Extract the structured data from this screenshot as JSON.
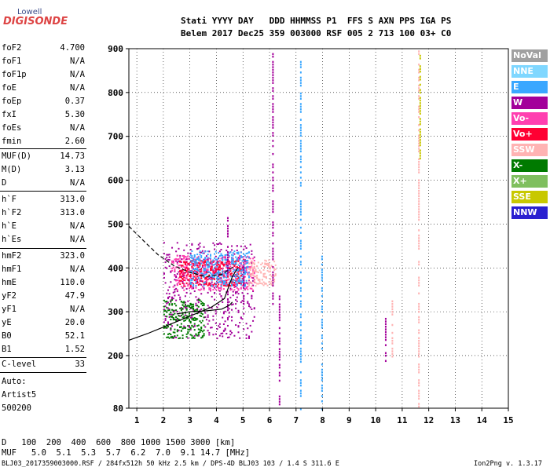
{
  "logo": {
    "top": "Lowell",
    "main": "DIGISONDE"
  },
  "header": {
    "line1": "Stati YYYY DAY   DDD HHMMSS P1  FFS S AXN PPS IGA PS",
    "line2": "Belem 2017 Dec25 359 003000 RSF 005 2 713 100 03+ C0"
  },
  "params": [
    {
      "name": "foF2",
      "value": "4.700"
    },
    {
      "name": "foF1",
      "value": "N/A"
    },
    {
      "name": "foF1p",
      "value": "N/A"
    },
    {
      "name": "foE",
      "value": "N/A"
    },
    {
      "name": "foEp",
      "value": "0.37"
    },
    {
      "name": "fxI",
      "value": "5.30"
    },
    {
      "name": "foEs",
      "value": "N/A"
    },
    {
      "name": "fmin",
      "value": "2.60"
    },
    {
      "name": "MUF(D)",
      "value": "14.73"
    },
    {
      "name": "M(D)",
      "value": "3.13"
    },
    {
      "name": "D",
      "value": "N/A"
    },
    {
      "name": "h`F",
      "value": "313.0"
    },
    {
      "name": "h`F2",
      "value": "313.0"
    },
    {
      "name": "h`E",
      "value": "N/A"
    },
    {
      "name": "h`Es",
      "value": "N/A"
    },
    {
      "name": "hmF2",
      "value": "323.0"
    },
    {
      "name": "hmF1",
      "value": "N/A"
    },
    {
      "name": "hmE",
      "value": "110.0"
    },
    {
      "name": "yF2",
      "value": "47.9"
    },
    {
      "name": "yF1",
      "value": "N/A"
    },
    {
      "name": "yE",
      "value": "20.0"
    },
    {
      "name": "B0",
      "value": "52.1"
    },
    {
      "name": "B1",
      "value": "1.52"
    },
    {
      "name": "C-level",
      "value": "33"
    }
  ],
  "auto": {
    "label": "Auto:",
    "artist": "Artist5",
    "version": "500200"
  },
  "dist_table": {
    "d_label": "D",
    "distances": [
      "100",
      "200",
      "400",
      "600",
      "800",
      "1000",
      "1500",
      "3000"
    ],
    "d_unit": "[km]",
    "muf_label": "MUF",
    "mufs": [
      "5.0",
      "5.1",
      "5.3",
      "5.7",
      "6.2",
      "7.0",
      "9.1",
      "14.7"
    ],
    "muf_unit": "[MHz]"
  },
  "footer": "BLJ03_2017359003000.RSF / 284fx512h 50 kHz 2.5 km / DPS-4D BLJ03 103 / 1.4 S 311.6 E",
  "version": "Ion2Png v. 1.3.17",
  "legend": [
    {
      "label": "NoVal",
      "color": "#a0a0a0"
    },
    {
      "label": "NNE",
      "color": "#7fd7ff"
    },
    {
      "label": "E",
      "color": "#3aa7ff"
    },
    {
      "label": "W",
      "color": "#a3009a"
    },
    {
      "label": "Vo-",
      "color": "#ff3fb0"
    },
    {
      "label": "Vo+",
      "color": "#ff0033"
    },
    {
      "label": "SSW",
      "color": "#ffb3b3"
    },
    {
      "label": "X-",
      "color": "#007a00"
    },
    {
      "label": "X+",
      "color": "#7fbf5f"
    },
    {
      "label": "SSE",
      "color": "#c8c800"
    },
    {
      "label": "NNW",
      "color": "#2a20d0"
    }
  ],
  "chart_data": {
    "type": "scatter",
    "xlim": [
      0.7,
      15
    ],
    "ylim": [
      80,
      900
    ],
    "x_ticks": [
      1,
      2,
      3,
      4,
      5,
      6,
      7,
      8,
      9,
      10,
      11,
      12,
      13,
      14,
      15
    ],
    "y_ticks": [
      80,
      200,
      300,
      400,
      500,
      600,
      700,
      800,
      900
    ],
    "grid": true,
    "traces": [
      {
        "kind": "dashed",
        "points": [
          [
            0.7,
            495
          ],
          [
            1.2,
            465
          ],
          [
            1.8,
            430
          ],
          [
            2.4,
            405
          ],
          [
            3.0,
            390
          ],
          [
            3.6,
            380
          ],
          [
            4.2,
            385
          ],
          [
            4.7,
            405
          ]
        ]
      },
      {
        "kind": "solid",
        "points": [
          [
            0.7,
            235
          ],
          [
            1.4,
            250
          ],
          [
            2.0,
            265
          ],
          [
            2.6,
            280
          ],
          [
            3.2,
            295
          ],
          [
            3.8,
            310
          ],
          [
            4.3,
            330
          ],
          [
            4.6,
            380
          ],
          [
            4.8,
            400
          ]
        ]
      },
      {
        "kind": "solid",
        "points": [
          [
            2.5,
            295
          ],
          [
            3.0,
            300
          ],
          [
            3.6,
            302
          ],
          [
            4.2,
            306
          ],
          [
            4.5,
            315
          ],
          [
            4.6,
            322
          ]
        ]
      }
    ],
    "echoes": [
      {
        "f_start": 2.0,
        "f_end": 5.4,
        "h_min": 240,
        "h_max": 460,
        "color": "#a3009a"
      },
      {
        "f_start": 2.3,
        "f_end": 5.4,
        "h_min": 350,
        "h_max": 430,
        "color": "#ff3fb0"
      },
      {
        "f_start": 2.6,
        "f_end": 5.0,
        "h_min": 360,
        "h_max": 420,
        "color": "#ff0033"
      },
      {
        "f_start": 3.0,
        "f_end": 5.2,
        "h_min": 360,
        "h_max": 440,
        "color": "#3aa7ff"
      },
      {
        "f_start": 2.0,
        "f_end": 3.5,
        "h_min": 240,
        "h_max": 330,
        "color": "#007a00"
      },
      {
        "f_start": 5.2,
        "f_end": 6.2,
        "h_min": 360,
        "h_max": 420,
        "color": "#ffb3b3"
      }
    ],
    "columns": [
      {
        "f": 4.4,
        "h_min": 300,
        "h_max": 520,
        "color": "#a3009a"
      },
      {
        "f": 5.0,
        "h_min": 320,
        "h_max": 420,
        "color": "#a3009a"
      },
      {
        "f": 6.1,
        "h_min": 320,
        "h_max": 890,
        "color": "#a3009a"
      },
      {
        "f": 6.35,
        "h_min": 85,
        "h_max": 340,
        "color": "#a3009a"
      },
      {
        "f": 7.15,
        "h_min": 80,
        "h_max": 880,
        "color": "#3aa7ff"
      },
      {
        "f": 7.95,
        "h_min": 80,
        "h_max": 430,
        "color": "#3aa7ff"
      },
      {
        "f": 10.35,
        "h_min": 190,
        "h_max": 290,
        "color": "#a3009a"
      },
      {
        "f": 10.6,
        "h_min": 200,
        "h_max": 330,
        "color": "#ffb3b3"
      },
      {
        "f": 11.6,
        "h_min": 80,
        "h_max": 900,
        "color": "#ffb3b3"
      },
      {
        "f": 11.65,
        "h_min": 640,
        "h_max": 890,
        "color": "#c8c800"
      }
    ]
  }
}
